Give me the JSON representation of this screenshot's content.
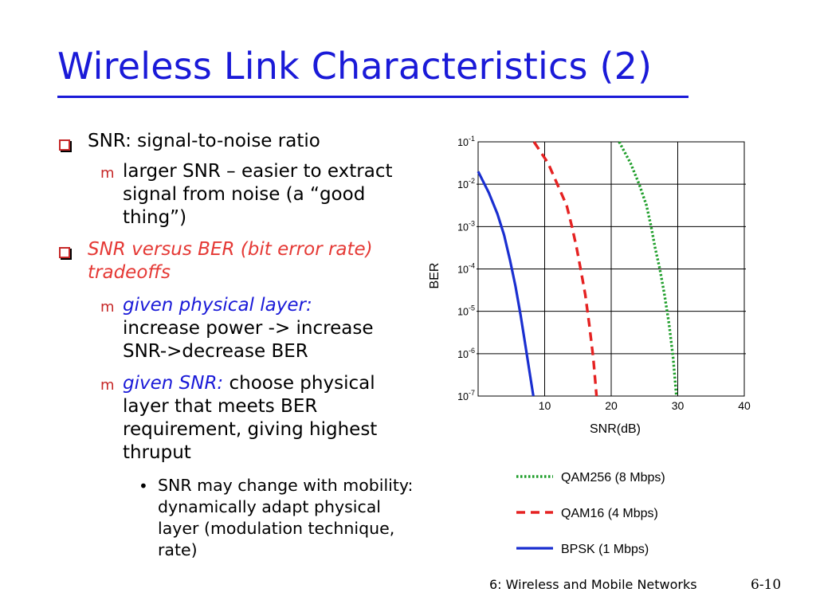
{
  "title": "Wireless Link Characteristics (2)",
  "bullets": {
    "b1": "SNR: signal-to-noise ratio",
    "b1_sub": "larger SNR – easier to extract signal from noise (a “good thing”)",
    "b2": "SNR versus BER (bit error rate) tradeoffs",
    "b2_sub1_lead": "given physical layer:",
    "b2_sub1_rest": "increase power -> increase SNR->decrease BER",
    "b2_sub2_lead": "given SNR:",
    "b2_sub2_rest": "choose physical layer that meets BER requirement, giving highest thruput",
    "b2_sub2_sub": "SNR may change with mobility: dynamically adapt physical layer (modulation technique, rate)"
  },
  "markers": {
    "o": "m",
    "dot": "•"
  },
  "colors": {
    "title": "#1a1ad8",
    "accent_red": "#e53935",
    "qam256": "#1e9e2a",
    "qam16": "#e52222",
    "bpsk": "#1a2fd0"
  },
  "chart_data": {
    "type": "line",
    "xlabel": "SNR(dB)",
    "ylabel": "BER",
    "x_ticks": [
      10,
      20,
      30,
      40
    ],
    "xlim": [
      0,
      40
    ],
    "y_scale": "log",
    "y_tick_labels": [
      {
        "base": "10",
        "exp": "-1"
      },
      {
        "base": "10",
        "exp": "-2"
      },
      {
        "base": "10",
        "exp": "-3"
      },
      {
        "base": "10",
        "exp": "-4"
      },
      {
        "base": "10",
        "exp": "-5"
      },
      {
        "base": "10",
        "exp": "-6"
      },
      {
        "base": "10",
        "exp": "-7"
      }
    ],
    "ylim_exp": [
      -7,
      -1
    ],
    "grid": true,
    "legend_placement": "below",
    "series": [
      {
        "name": "QAM256 (8 Mbps)",
        "style": "dotted",
        "color": "#1e9e2a",
        "points": [
          [
            21.2,
            -1.0
          ],
          [
            22.9,
            -1.5
          ],
          [
            24.2,
            -2.0
          ],
          [
            25.3,
            -2.5
          ],
          [
            26.0,
            -3.0
          ],
          [
            26.6,
            -3.5
          ],
          [
            27.3,
            -4.0
          ],
          [
            28.0,
            -4.6
          ],
          [
            28.7,
            -5.3
          ],
          [
            29.3,
            -6.1
          ],
          [
            29.8,
            -7.0
          ]
        ]
      },
      {
        "name": "QAM16 (4 Mbps)",
        "style": "dashed",
        "color": "#e52222",
        "points": [
          [
            8.4,
            -1.0
          ],
          [
            10.5,
            -1.5
          ],
          [
            11.9,
            -2.0
          ],
          [
            13.3,
            -2.5
          ],
          [
            14.1,
            -3.0
          ],
          [
            14.8,
            -3.5
          ],
          [
            15.4,
            -4.0
          ],
          [
            16.1,
            -4.6
          ],
          [
            16.7,
            -5.3
          ],
          [
            17.3,
            -6.1
          ],
          [
            17.8,
            -7.0
          ]
        ]
      },
      {
        "name": "BPSK (1 Mbps)",
        "style": "solid",
        "color": "#1a2fd0",
        "points": [
          [
            0,
            -1.7
          ],
          [
            1.6,
            -2.2
          ],
          [
            2.9,
            -2.7
          ],
          [
            3.9,
            -3.2
          ],
          [
            4.8,
            -3.8
          ],
          [
            5.6,
            -4.4
          ],
          [
            6.4,
            -5.1
          ],
          [
            7.1,
            -5.8
          ],
          [
            7.8,
            -6.5
          ],
          [
            8.3,
            -7.0
          ]
        ]
      }
    ]
  },
  "footer": {
    "text": "6: Wireless and Mobile Networks",
    "page": "6-10"
  }
}
